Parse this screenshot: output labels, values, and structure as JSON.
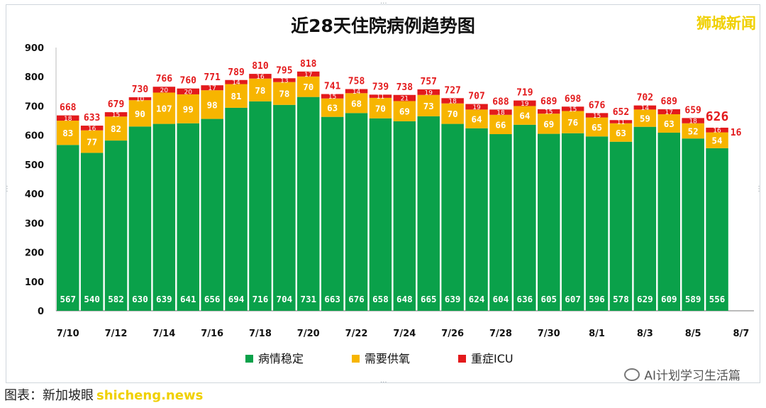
{
  "chart_data": {
    "type": "bar",
    "stacked": true,
    "title": "近28天住院病例趋势图",
    "ylim": [
      0,
      900
    ],
    "yticks": [
      0,
      100,
      200,
      300,
      400,
      500,
      600,
      700,
      800,
      900
    ],
    "xticks": [
      "7/10",
      "7/12",
      "7/14",
      "7/16",
      "7/18",
      "7/20",
      "7/22",
      "7/24",
      "7/26",
      "7/28",
      "7/30",
      "8/1",
      "8/3",
      "8/5",
      "8/7"
    ],
    "categories": [
      "7/10",
      "7/11",
      "7/12",
      "7/13",
      "7/14",
      "7/15",
      "7/16",
      "7/17",
      "7/18",
      "7/19",
      "7/20",
      "7/21",
      "7/22",
      "7/23",
      "7/24",
      "7/25",
      "7/26",
      "7/27",
      "7/28",
      "7/29",
      "7/30",
      "7/31",
      "8/1",
      "8/2",
      "8/3",
      "8/4",
      "8/5",
      "8/6"
    ],
    "series": [
      {
        "name": "病情稳定",
        "color": "#0aa14a",
        "values": [
          567,
          540,
          582,
          630,
          639,
          641,
          656,
          694,
          716,
          704,
          731,
          663,
          676,
          658,
          648,
          665,
          639,
          624,
          604,
          636,
          605,
          607,
          596,
          578,
          629,
          609,
          589,
          556
        ]
      },
      {
        "name": "需要供氧",
        "color": "#f7b500",
        "values": [
          83,
          77,
          82,
          90,
          107,
          99,
          98,
          81,
          78,
          78,
          70,
          63,
          68,
          70,
          69,
          73,
          70,
          64,
          66,
          64,
          69,
          76,
          65,
          63,
          59,
          63,
          52,
          54
        ]
      },
      {
        "name": "重症ICU",
        "color": "#e31a1c",
        "values": [
          18,
          16,
          15,
          10,
          20,
          20,
          17,
          14,
          16,
          13,
          17,
          15,
          14,
          11,
          21,
          19,
          18,
          19,
          18,
          19,
          15,
          15,
          15,
          11,
          14,
          17,
          18,
          16
        ]
      }
    ],
    "totals": [
      668,
      633,
      679,
      730,
      766,
      760,
      771,
      789,
      810,
      795,
      818,
      741,
      758,
      739,
      738,
      757,
      727,
      707,
      688,
      719,
      689,
      698,
      676,
      652,
      702,
      689,
      659,
      626
    ],
    "grid": false,
    "legend_position": "bottom"
  },
  "brand_label": "狮城新闻",
  "footer": {
    "source_text": "图表：新加坡眼",
    "watermark": "shicheng.news"
  },
  "wechat_label": "AI计划学习生活篇"
}
